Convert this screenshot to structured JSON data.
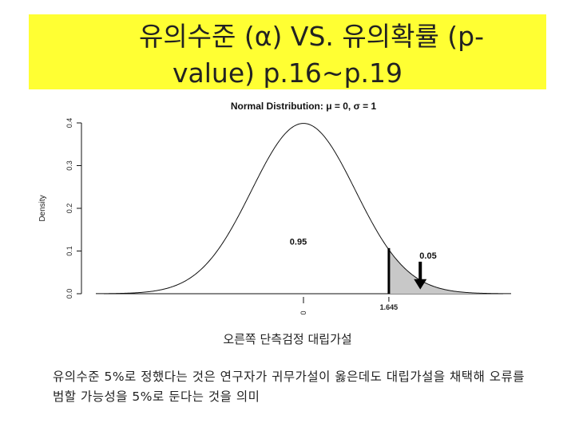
{
  "title": {
    "line1": "유의수준 (α) VS. 유의확률 (p-",
    "line2": "value) p.16~p.19"
  },
  "chart_data": {
    "type": "line",
    "title": "Normal Distribution: μ = 0, σ = 1",
    "ylabel": "Density",
    "yticks": [
      "0.0",
      "0.1",
      "0.2",
      "0.3",
      "0.4"
    ],
    "ylim": [
      0,
      0.4
    ],
    "xlim": [
      -4,
      4
    ],
    "mu": 0,
    "sigma": 1,
    "x_tick_labels": [
      "0",
      "1.645"
    ],
    "critical_value": 1.645,
    "annotations": [
      {
        "text": "0.95",
        "region": "left of critical value"
      },
      {
        "text": "0.05",
        "region": "shaded right tail"
      }
    ],
    "shaded_tail_color": "#c8c8c8"
  },
  "caption": "오른쪽 단측검정 대립가설",
  "body": "유의수준 5%로 정했다는 것은 연구자가 귀무가설이 옳은데도 대립가설을 채택해 오류를 범할 가능성을 5%로 둔다는 것을 의미"
}
